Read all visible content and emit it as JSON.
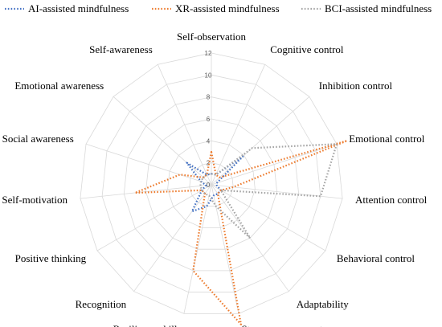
{
  "chart_data": {
    "type": "radar",
    "categories": [
      "Self-observation",
      "Cognitive control",
      "Inhibition control",
      "Emotional control",
      "Attention control",
      "Behavioral control",
      "Adaptability",
      "Stress management",
      "Resilience skills",
      "Recognition",
      "Positive thinking",
      "Self-motivation",
      "Social awareness",
      "Emotional awareness",
      "Self-awareness"
    ],
    "rlim": [
      0,
      12
    ],
    "ticks": [
      "0",
      "2",
      "4",
      "6",
      "8",
      "10",
      "12"
    ],
    "grid": true,
    "legend_position": "top",
    "series": [
      {
        "name": "AI-assisted mindfulness",
        "color": "#4472c4",
        "values": [
          1,
          1,
          4,
          0.5,
          0.5,
          1,
          1,
          1,
          2,
          3,
          1,
          0.5,
          1,
          3,
          1
        ]
      },
      {
        "name": "XR-assisted mindfulness",
        "color": "#ed7d31",
        "values": [
          3,
          1,
          1,
          13,
          2,
          1,
          1,
          13,
          8,
          1,
          1,
          7,
          3,
          1,
          1
        ]
      },
      {
        "name": "BCI-assisted mindfulness",
        "color": "#a5a5a5",
        "values": [
          1,
          1,
          5,
          12,
          10,
          1,
          6,
          2,
          1,
          1,
          1,
          1,
          1,
          1,
          1
        ]
      }
    ]
  }
}
